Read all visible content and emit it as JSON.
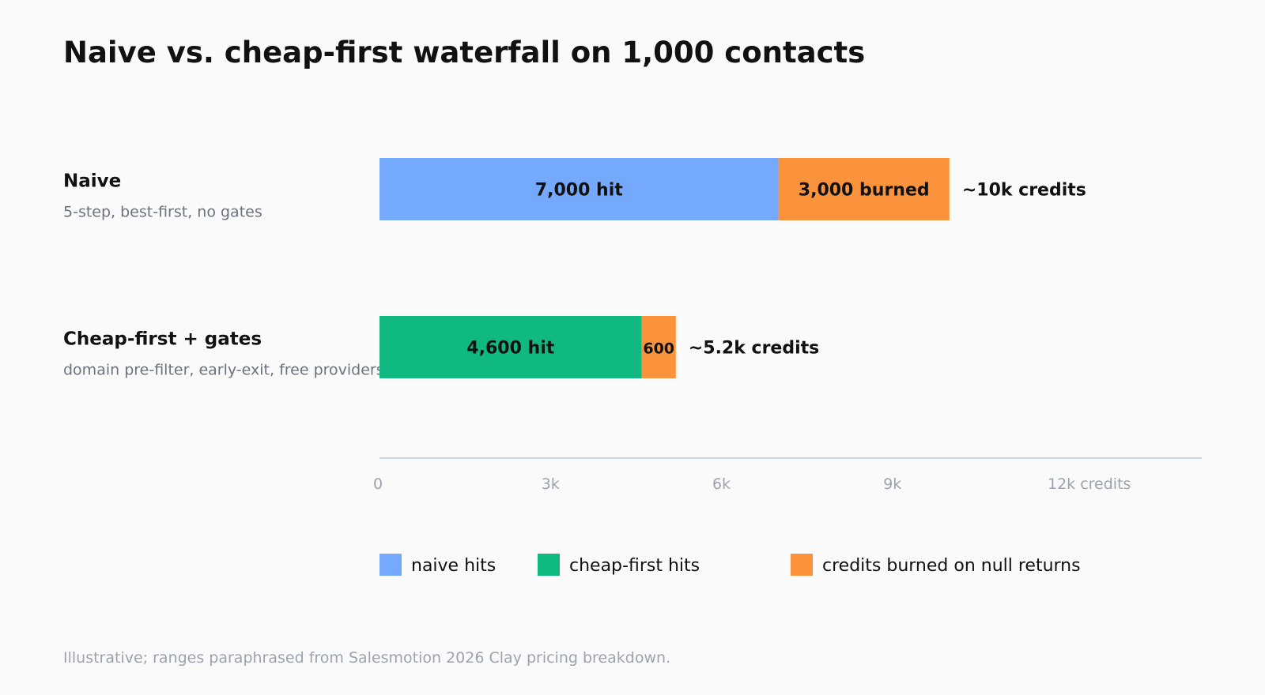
{
  "title": "Naive vs. cheap-first waterfall on 1,000 contacts",
  "footnote": "Illustrative; ranges paraphrased from Salesmotion 2026 Clay pricing breakdown.",
  "colors": {
    "naive_hits": "#74a9fb",
    "cheap_first_hits": "#10b981",
    "burned": "#fb923c",
    "axis": "#cbd5e1"
  },
  "chart_data": {
    "type": "bar",
    "orientation": "horizontal",
    "stacked": true,
    "xlim": [
      0,
      12000
    ],
    "x_ticks": [
      {
        "value": 0,
        "label": "0"
      },
      {
        "value": 3000,
        "label": "3k"
      },
      {
        "value": 6000,
        "label": "6k"
      },
      {
        "value": 9000,
        "label": "9k"
      },
      {
        "value": 12000,
        "label": "12k credits"
      }
    ],
    "rows": [
      {
        "label": "Naive",
        "sublabel": "5-step, best-first, no gates",
        "total_label": "~10k credits",
        "segments": [
          {
            "series": "naive hits",
            "value": 7000,
            "label": "7,000 hit",
            "color": "#74a9fb"
          },
          {
            "series": "credits burned on null returns",
            "value": 3000,
            "label": "3,000 burned",
            "color": "#fb923c"
          }
        ]
      },
      {
        "label": "Cheap-first + gates",
        "sublabel": "domain pre-filter, early-exit, free providers",
        "total_label": "~5.2k credits",
        "segments": [
          {
            "series": "cheap-first hits",
            "value": 4600,
            "label": "4,600 hit",
            "color": "#10b981"
          },
          {
            "series": "credits burned on null returns",
            "value": 600,
            "label": "600",
            "color": "#fb923c"
          }
        ]
      }
    ],
    "legend": [
      {
        "label": "naive hits",
        "color": "#74a9fb"
      },
      {
        "label": "cheap-first hits",
        "color": "#10b981"
      },
      {
        "label": "credits burned on null returns",
        "color": "#fb923c"
      }
    ],
    "legend_position": "bottom",
    "grid": false
  }
}
